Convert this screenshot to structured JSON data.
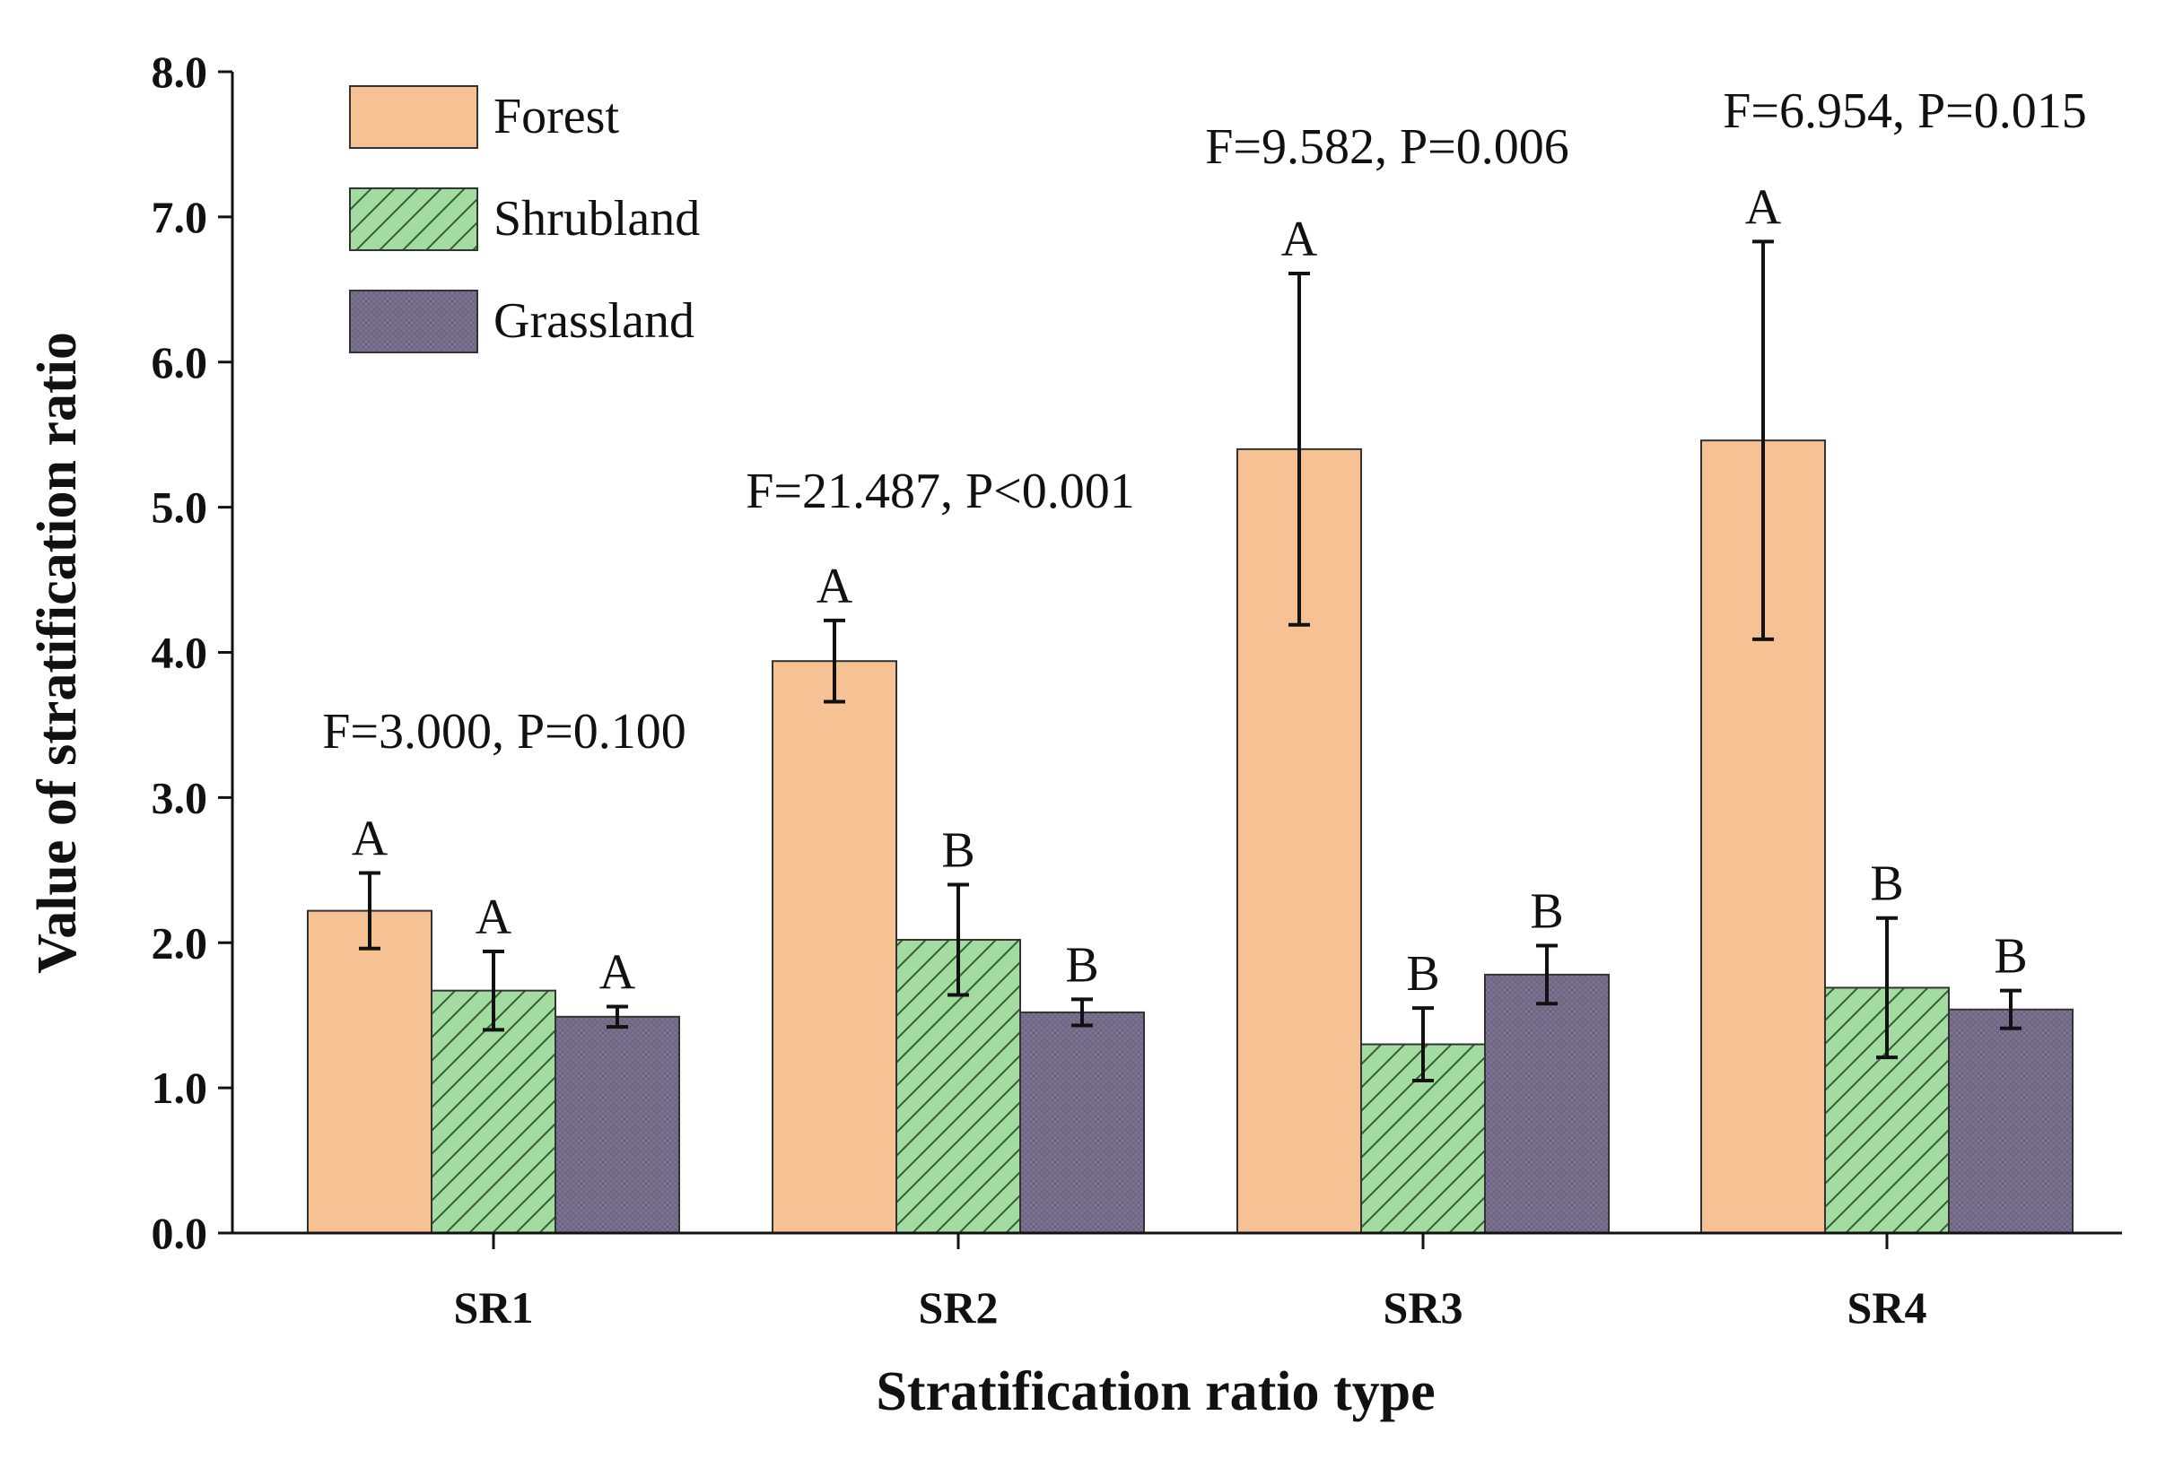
{
  "chart_data": {
    "type": "bar",
    "title": "",
    "xlabel": "Stratification ratio type",
    "ylabel": "Value of stratification ratio",
    "ylim": [
      0,
      8
    ],
    "yticks": [
      "0.0",
      "1.0",
      "2.0",
      "3.0",
      "4.0",
      "5.0",
      "6.0",
      "7.0",
      "8.0"
    ],
    "categories": [
      "SR1",
      "SR2",
      "SR3",
      "SR4"
    ],
    "legend_position": "top-left",
    "grid": false,
    "series": [
      {
        "name": "Forest",
        "color": "#f6c294",
        "pattern": "solid",
        "values": [
          2.22,
          3.94,
          5.4,
          5.46
        ],
        "errors": [
          0.26,
          0.28,
          1.21,
          1.37
        ],
        "letters": [
          "A",
          "A",
          "A",
          "A"
        ]
      },
      {
        "name": "Shrubland",
        "color": "#a3dca0",
        "pattern": "diagonal",
        "values": [
          1.67,
          2.02,
          1.3,
          1.69
        ],
        "errors": [
          0.27,
          0.38,
          0.25,
          0.48
        ],
        "letters": [
          "A",
          "B",
          "B",
          "B"
        ]
      },
      {
        "name": "Grassland",
        "color": "#7d7391",
        "pattern": "crosshatch",
        "values": [
          1.49,
          1.52,
          1.78,
          1.54
        ],
        "errors": [
          0.07,
          0.09,
          0.2,
          0.13
        ],
        "letters": [
          "A",
          "B",
          "B",
          "B"
        ]
      }
    ],
    "annotations": [
      {
        "category": "SR1",
        "text": "F=3.000, P=0.100"
      },
      {
        "category": "SR2",
        "text": "F=21.487, P<0.001"
      },
      {
        "category": "SR3",
        "text": "F=9.582, P=0.006"
      },
      {
        "category": "SR4",
        "text": "F=6.954, P=0.015"
      }
    ]
  }
}
